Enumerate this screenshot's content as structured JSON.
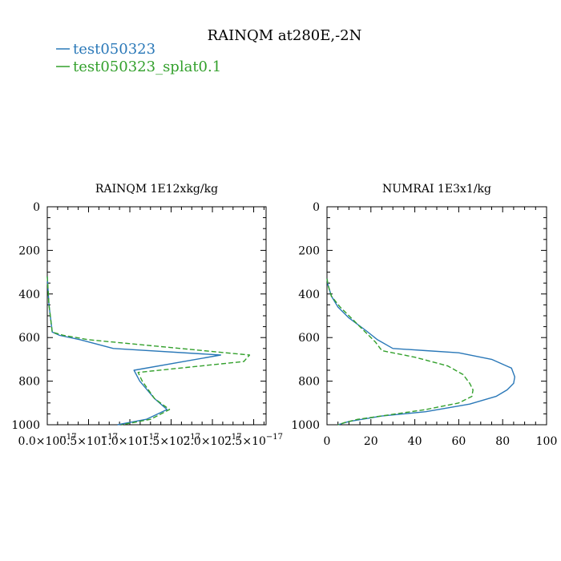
{
  "figure_title": "RAINQM at280E,-2N",
  "legend": [
    {
      "label": "test050323",
      "color": "#2a78b8",
      "dash": "solid"
    },
    {
      "label": "test050323_splat0.1",
      "color": "#33a02c",
      "dash": "dashed"
    }
  ],
  "chart_data": [
    {
      "type": "line",
      "title": "RAINQM  1E12xkg/kg",
      "xlabel": "",
      "ylabel": "",
      "xlim": [
        0,
        2.65e-17
      ],
      "ylim": [
        1000,
        0
      ],
      "yticks": [
        0,
        200,
        400,
        600,
        800,
        1000
      ],
      "ytick_labels": [
        "0",
        "200",
        "400",
        "600",
        "800",
        "1000"
      ],
      "xticks": [
        0,
        5e-18,
        1e-17,
        1.5e-17,
        2e-17,
        2.5e-17
      ],
      "xtick_labels": [
        "0.0×10",
        "0.5×10",
        "1.0×10",
        "1.5×10",
        "2.0×10",
        "2.5×10"
      ],
      "xtick_exponent": "−17",
      "series": [
        {
          "name": "test050323",
          "x": [
            0,
            2e-19,
            6e-19,
            1.5e-18,
            4e-18,
            8e-18,
            2.1e-17,
            1.05e-17,
            1.12e-17,
            1.3e-17,
            1.45e-17,
            1.2e-17,
            8.5e-18
          ],
          "y": [
            320,
            450,
            575,
            590,
            610,
            650,
            680,
            750,
            800,
            880,
            930,
            975,
            1000
          ]
        },
        {
          "name": "test050323_splat0.1",
          "x": [
            0,
            2e-19,
            6e-19,
            2e-18,
            5e-18,
            2.45e-17,
            2.38e-17,
            1.1e-17,
            1.15e-17,
            1.3e-17,
            1.48e-17,
            1.25e-17,
            9e-18
          ],
          "y": [
            320,
            450,
            575,
            590,
            610,
            680,
            710,
            760,
            800,
            880,
            930,
            975,
            1000
          ]
        }
      ]
    },
    {
      "type": "line",
      "title": "NUMRAI  1E3x1/kg",
      "xlabel": "",
      "ylabel": "",
      "xlim": [
        0,
        100
      ],
      "ylim": [
        1000,
        0
      ],
      "yticks": [
        0,
        200,
        400,
        600,
        800,
        1000
      ],
      "ytick_labels": [
        "0",
        "200",
        "400",
        "600",
        "800",
        "1000"
      ],
      "xticks": [
        0,
        20,
        40,
        60,
        80,
        100
      ],
      "xtick_labels": [
        "0",
        "20",
        "40",
        "60",
        "80",
        "100"
      ],
      "series": [
        {
          "name": "test050323",
          "x": [
            0,
            0.5,
            2,
            5,
            10,
            18,
            23,
            30,
            45,
            60,
            75,
            84,
            85.5,
            85,
            82,
            77,
            65,
            45,
            25,
            10,
            5
          ],
          "y": [
            330,
            360,
            410,
            460,
            510,
            570,
            610,
            650,
            660,
            670,
            700,
            740,
            780,
            810,
            840,
            870,
            905,
            940,
            960,
            985,
            1000
          ]
        },
        {
          "name": "test050323_splat0.1",
          "x": [
            0,
            0.5,
            2,
            6,
            12,
            18,
            22,
            25,
            40,
            55,
            62,
            65,
            66.5,
            66,
            60,
            45,
            28,
            14,
            8,
            5
          ],
          "y": [
            330,
            360,
            410,
            460,
            520,
            580,
            620,
            660,
            690,
            730,
            770,
            810,
            840,
            870,
            900,
            930,
            955,
            975,
            990,
            1000
          ]
        }
      ]
    }
  ]
}
